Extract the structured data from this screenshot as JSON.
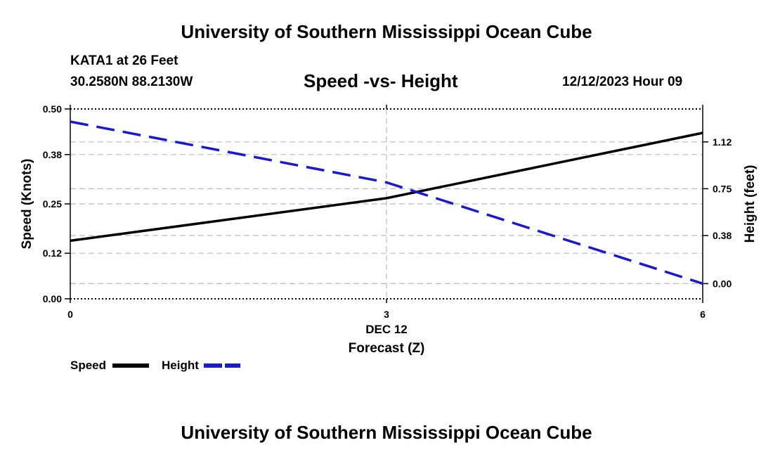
{
  "header": {
    "title_top": "University of Southern Mississippi Ocean Cube",
    "station": "KATA1 at 26 Feet",
    "coords": "30.2580N  88.2130W",
    "subtitle": "Speed -vs- Height",
    "datetime": "12/12/2023 Hour 09",
    "title_bottom": "University of Southern Mississippi Ocean Cube"
  },
  "chart_data": {
    "type": "line",
    "title": "Speed -vs- Height",
    "xlabel": "Forecast (Z)",
    "xdate_label": "DEC 12",
    "x": [
      0,
      3,
      6
    ],
    "xlim": [
      0,
      6
    ],
    "x_ticks": [
      "0",
      "3",
      "6"
    ],
    "left_axis": {
      "label": "Speed (Knots)",
      "ylim": [
        0,
        0.5
      ],
      "ticks": [
        0.0,
        0.12,
        0.25,
        0.38,
        0.5
      ],
      "tick_labels": [
        "0.00",
        "0.12",
        "0.25",
        "0.38",
        "0.50"
      ]
    },
    "right_axis": {
      "label": "Height (feet)",
      "ylim": [
        -0.12,
        1.38
      ],
      "ticks": [
        0.0,
        0.38,
        0.75,
        1.12
      ],
      "tick_labels": [
        "0.00",
        "0.38",
        "0.75",
        "1.12"
      ]
    },
    "grid": true,
    "series": [
      {
        "name": "Speed",
        "axis": "left",
        "style": "solid",
        "color": "#000000",
        "values": [
          0.153,
          0.265,
          0.437
        ]
      },
      {
        "name": "Height",
        "axis": "right",
        "style": "dashed",
        "color": "#1a1acc",
        "values": [
          1.28,
          0.8,
          0.0
        ]
      }
    ]
  }
}
